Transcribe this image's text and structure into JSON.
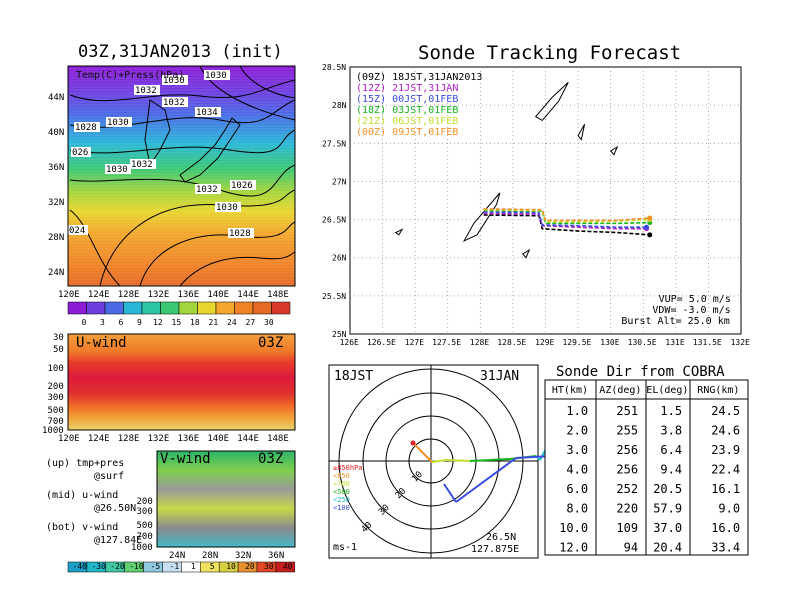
{
  "left_panel": {
    "title": "03Z,31JAN2013 (init)",
    "legend_text": "Temp(C)+Press(hPa)",
    "x_ticks": [
      "120E",
      "124E",
      "128E",
      "132E",
      "136E",
      "140E",
      "144E",
      "148E"
    ],
    "y_ticks": [
      "44N",
      "40N",
      "36N",
      "32N",
      "28N",
      "24N"
    ],
    "isobar_labels": [
      "1030",
      "1032",
      "1030",
      "1032",
      "1034",
      "1028",
      "1030",
      "026",
      "1030",
      "1032",
      "1032",
      "1026",
      "1030",
      "1028",
      "024"
    ],
    "colorbar_ticks": [
      "0",
      "3",
      "6",
      "9",
      "12",
      "15",
      "18",
      "21",
      "24",
      "27",
      "30"
    ],
    "colors": {
      "cold": "#8c1bd6",
      "warm": "#f07d22",
      "hot": "#d83a2a"
    }
  },
  "uwind": {
    "label": "U-wind",
    "time": "03Z",
    "y_ticks": [
      "30",
      "50",
      "100",
      "200",
      "300",
      "500",
      "700",
      "1000"
    ],
    "x_ticks": [
      "120E",
      "124E",
      "128E",
      "132E",
      "136E",
      "140E",
      "144E",
      "148E"
    ]
  },
  "vwind": {
    "label": "V-wind",
    "time": "03Z",
    "y_ticks": [
      "200",
      "300",
      "500",
      "700",
      "1000"
    ],
    "x_ticks": [
      "24N",
      "28N",
      "32N",
      "36N"
    ]
  },
  "notes": {
    "up_line1": "(up) tmp+pres",
    "up_line2": "@surf",
    "mid_line1": "(mid) u-wind",
    "mid_line2": "@26.50N",
    "bot_line1": "(bot) v-wind",
    "bot_line2": "@127.84E"
  },
  "wind_colorbar_ticks": [
    "-40",
    "-30",
    "-20",
    "-10",
    "-5",
    "-1",
    "1",
    "5",
    "10",
    "20",
    "30",
    "40"
  ],
  "chart_data": {
    "type": "line",
    "title": "Sonde Tracking Forecast",
    "xlim": [
      126,
      132
    ],
    "ylim": [
      25,
      28.5
    ],
    "x_ticks": [
      "126E",
      "126.5E",
      "127E",
      "127.5E",
      "128E",
      "128.5E",
      "129E",
      "129.5E",
      "130E",
      "130.5E",
      "131E",
      "131.5E",
      "132E"
    ],
    "y_ticks": [
      "28.5N",
      "28N",
      "27.5N",
      "27N",
      "26.5N",
      "26N",
      "25.5N",
      "25N"
    ],
    "series": [
      {
        "name": "(09Z) 18JST,31JAN2013",
        "color": "#000000",
        "dash": true,
        "points": [
          [
            128.05,
            26.56
          ],
          [
            128.9,
            26.55
          ],
          [
            128.95,
            26.38
          ],
          [
            129.5,
            26.35
          ],
          [
            130.1,
            26.33
          ],
          [
            130.6,
            26.3
          ]
        ]
      },
      {
        "name": "(12Z) 21JST,31JAN",
        "color": "#b022c8",
        "dash": true,
        "points": [
          [
            128.05,
            26.58
          ],
          [
            128.9,
            26.57
          ],
          [
            128.95,
            26.42
          ],
          [
            129.5,
            26.4
          ],
          [
            130.1,
            26.38
          ],
          [
            130.55,
            26.38
          ]
        ]
      },
      {
        "name": "(15Z) 00JST,01FEB",
        "color": "#3a4ce0",
        "dash": true,
        "points": [
          [
            128.05,
            26.6
          ],
          [
            128.9,
            26.59
          ],
          [
            128.95,
            26.43
          ],
          [
            129.5,
            26.42
          ],
          [
            130.1,
            26.4
          ],
          [
            130.55,
            26.4
          ]
        ]
      },
      {
        "name": "(18Z) 03JST,01FEB",
        "color": "#18b41e",
        "dash": true,
        "points": [
          [
            128.05,
            26.62
          ],
          [
            128.95,
            26.61
          ],
          [
            129.0,
            26.45
          ],
          [
            129.5,
            26.45
          ],
          [
            130.1,
            26.45
          ],
          [
            130.6,
            26.46
          ]
        ]
      },
      {
        "name": "(21Z) 06JST,01FEB",
        "color": "#c8dc30",
        "dash": true,
        "points": [
          [
            128.05,
            26.63
          ],
          [
            128.95,
            26.62
          ],
          [
            129.0,
            26.47
          ],
          [
            129.5,
            26.47
          ],
          [
            130.1,
            26.48
          ],
          [
            130.6,
            26.5
          ]
        ]
      },
      {
        "name": "(00Z) 09JST,01FEB",
        "color": "#f09028",
        "dash": true,
        "points": [
          [
            128.05,
            26.64
          ],
          [
            128.95,
            26.63
          ],
          [
            129.0,
            26.49
          ],
          [
            129.5,
            26.49
          ],
          [
            130.1,
            26.49
          ],
          [
            130.6,
            26.52
          ]
        ]
      }
    ],
    "params": [
      "VUP= 5.0 m/s",
      "VDW= -3.0 m/s",
      "Burst Alt= 25.0 km"
    ]
  },
  "polar": {
    "time_label": "18JST",
    "date_label": "31JAN",
    "ring_labels": [
      "10",
      "20",
      "30",
      "40"
    ],
    "pressure_legend": [
      "≥850hPa",
      "<850",
      "<700",
      "<500",
      "<250",
      "<100"
    ],
    "legend_colors": [
      "#e02020",
      "#f09028",
      "#c8dc30",
      "#18b41e",
      "#20c0c0",
      "#3a4ce0"
    ],
    "unit": "ms-1",
    "lat": "26.5N",
    "lon": "127.875E"
  },
  "table": {
    "title": "Sonde Dir from COBRA",
    "headers": [
      "HT(km)",
      "AZ(deg)",
      "EL(deg)",
      "RNG(km)"
    ],
    "rows": [
      [
        "1.0",
        "251",
        "1.5",
        "24.5"
      ],
      [
        "2.0",
        "255",
        "3.8",
        "24.6"
      ],
      [
        "3.0",
        "256",
        "6.4",
        "23.9"
      ],
      [
        "4.0",
        "256",
        "9.4",
        "22.4"
      ],
      [
        "6.0",
        "252",
        "20.5",
        "16.1"
      ],
      [
        "8.0",
        "220",
        "57.9",
        "9.0"
      ],
      [
        "10.0",
        "109",
        "37.0",
        "16.0"
      ],
      [
        "12.0",
        "94",
        "20.4",
        "33.4"
      ]
    ]
  }
}
